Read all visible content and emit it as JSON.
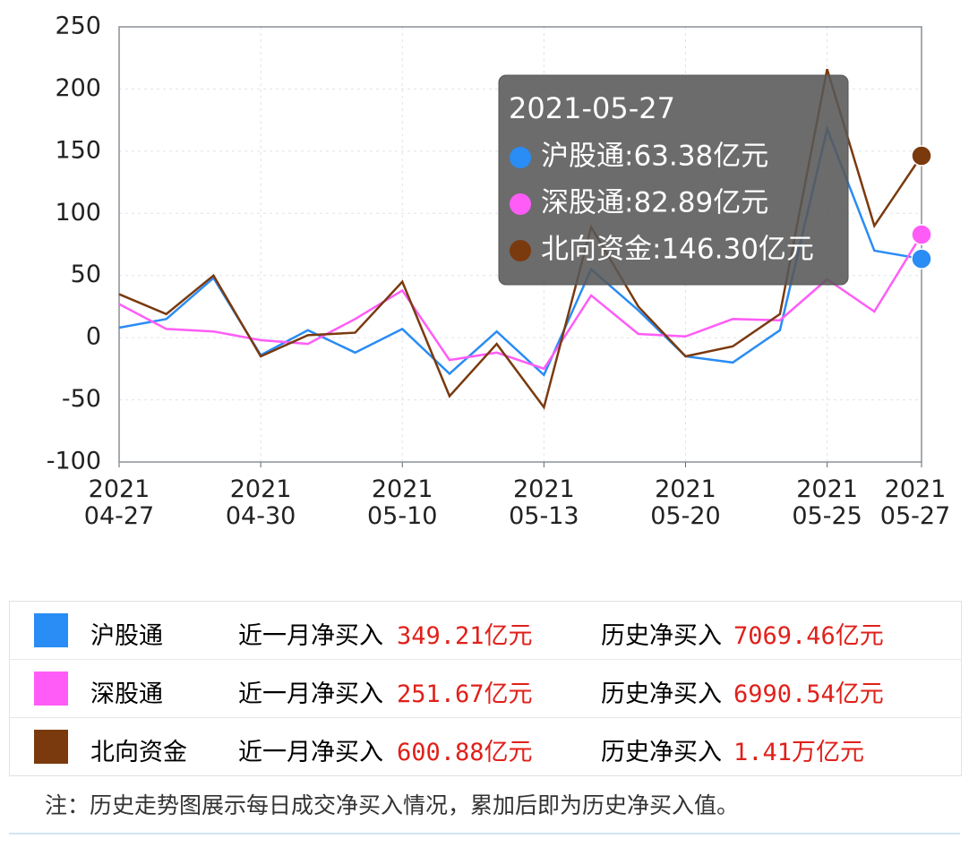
{
  "chart_data": {
    "type": "line",
    "categories": [
      "2021\n04-27",
      null,
      null,
      "2021\n04-30",
      null,
      null,
      "2021\n05-10",
      null,
      null,
      "2021\n05-13",
      null,
      null,
      "2021\n05-20",
      null,
      null,
      "2021\n05-25",
      null,
      "2021\n05-27"
    ],
    "series": [
      {
        "name": "沪股通",
        "color": "#2a8cf5",
        "values": [
          8,
          15,
          48,
          -14,
          6,
          -12,
          7,
          -29,
          5,
          -30,
          55,
          22,
          -15,
          -20,
          6,
          168,
          70,
          63.38
        ]
      },
      {
        "name": "深股通",
        "color": "#ff5cf7",
        "values": [
          27,
          7,
          5,
          -2,
          -5,
          15,
          38,
          -18,
          -12,
          -25,
          34,
          3,
          1,
          15,
          14,
          47,
          21,
          82.89
        ]
      },
      {
        "name": "北向资金",
        "color": "#7a3a0e",
        "values": [
          35,
          19,
          50,
          -15,
          2,
          4,
          45,
          -47,
          -5,
          -56,
          89,
          25,
          -15,
          -7,
          19,
          216,
          90,
          146.3
        ]
      }
    ],
    "ylim": [
      -100,
      250
    ],
    "yticks": [
      -100,
      -50,
      0,
      50,
      100,
      150,
      200,
      250
    ],
    "grid": true,
    "tooltip": {
      "title": "2021-05-27",
      "labels": [
        "沪股通:63.38亿元",
        "深股通:82.89亿元",
        "北向资金:146.30亿元"
      ]
    }
  },
  "table": {
    "rows": [
      {
        "name": "沪股通",
        "month_label": "近一月净买入",
        "month_value": "349.21亿元",
        "hist_label": "历史净买入",
        "hist_value": "7069.46亿元"
      },
      {
        "name": "深股通",
        "month_label": "近一月净买入",
        "month_value": "251.67亿元",
        "hist_label": "历史净买入",
        "hist_value": "6990.54亿元"
      },
      {
        "name": "北向资金",
        "month_label": "近一月净买入",
        "month_value": "600.88亿元",
        "hist_label": "历史净买入",
        "hist_value": "1.41万亿元"
      }
    ]
  },
  "note": "注：历史走势图展示每日成交净买入情况，累加后即为历史净买入值。"
}
